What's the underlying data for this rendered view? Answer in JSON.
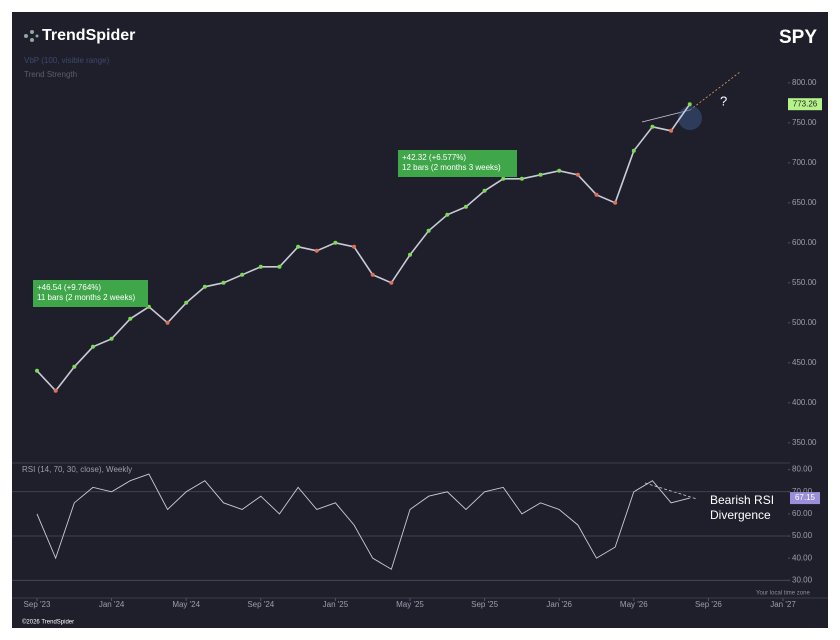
{
  "brand": "TrendSpider",
  "copyright": "©2026 TrendSpider",
  "timezone_note": "Your local time zone",
  "chart_data": {
    "type": "line",
    "indicators": [
      "VbP (100, visible range)",
      "Trend Strength"
    ],
    "categories": [
      "Sep '23",
      null,
      null,
      null,
      "Jan '24",
      null,
      null,
      null,
      "May '24",
      null,
      null,
      null,
      "Sep '24",
      null,
      null,
      null,
      "Jan '25",
      null,
      null,
      null,
      "May '25",
      null,
      null,
      null,
      "Sep '25",
      null,
      null,
      null,
      "Jan '26",
      null,
      null,
      null,
      "May '26",
      null,
      null,
      null,
      "Sep '26",
      null,
      null,
      null,
      "Jan '27"
    ],
    "series": [
      {
        "name": "SPY",
        "color": "#c9ccd6",
        "values": [
          440,
          415,
          445,
          470,
          480,
          505,
          520,
          500,
          525,
          545,
          550,
          560,
          570,
          570,
          595,
          590,
          600,
          595,
          560,
          550,
          585,
          615,
          635,
          645,
          665,
          680,
          680,
          685,
          690,
          685,
          660,
          650,
          715,
          745,
          740,
          773.26,
          null,
          null,
          null,
          null,
          null
        ]
      },
      {
        "name": "RSI (14, 70, 30, close), Weekly",
        "color": "#c9ccd6",
        "axis": "y2",
        "values": [
          60,
          40,
          65,
          72,
          70,
          75,
          78,
          62,
          70,
          75,
          65,
          62,
          68,
          60,
          72,
          62,
          65,
          55,
          40,
          35,
          62,
          68,
          70,
          62,
          70,
          72,
          60,
          65,
          62,
          55,
          40,
          45,
          70,
          75,
          65,
          67.15,
          null,
          null,
          null,
          null,
          null
        ]
      }
    ],
    "ylim": [
      326,
      816
    ],
    "yticks": [
      {
        "value": 800,
        "label": "800.00"
      },
      {
        "value": 750,
        "label": "750.00"
      },
      {
        "value": 700,
        "label": "700.00"
      },
      {
        "value": 650,
        "label": "650.00"
      },
      {
        "value": 600,
        "label": "600.00"
      },
      {
        "value": 550,
        "label": "550.00"
      },
      {
        "value": 500,
        "label": "500.00"
      },
      {
        "value": 450,
        "label": "450.00"
      },
      {
        "value": 400,
        "label": "400.00"
      },
      {
        "value": 350,
        "label": "350.00"
      }
    ],
    "y2lim": [
      22,
      83
    ],
    "y2ticks": [
      {
        "value": 80,
        "label": "80.00"
      },
      {
        "value": 70,
        "label": "70.00"
      },
      {
        "value": 60,
        "label": "60.00"
      },
      {
        "value": 50,
        "label": "50.00"
      },
      {
        "value": 40,
        "label": "40.00"
      },
      {
        "value": 30,
        "label": "30.00"
      }
    ],
    "y2_levels": [
      70,
      50,
      30
    ],
    "annotations": [
      {
        "lines": [
          "+46.54 (+9.764%)",
          "11 bars (2 months 2 weeks)"
        ]
      },
      {
        "lines": [
          "+42.32 (+6.577%)",
          "12 bars (2 months 3 weeks)"
        ]
      },
      {
        "lines": [
          "?"
        ]
      },
      {
        "lines": [
          "Bearish RSI",
          "Divergence"
        ]
      }
    ]
  }
}
